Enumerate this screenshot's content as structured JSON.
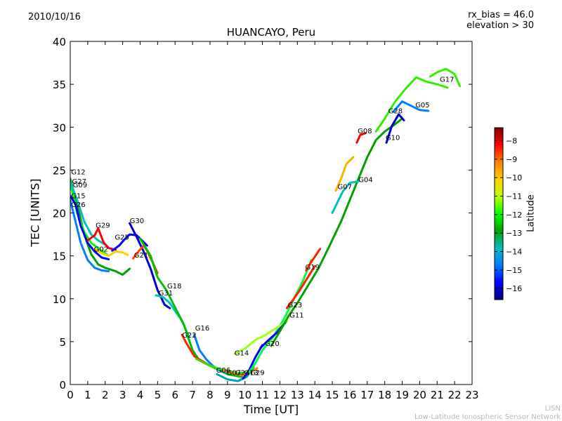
{
  "chart_data": {
    "type": "line",
    "title": "HUANCAYO, Peru",
    "date": "2010/10/16",
    "info_lines": [
      "rx_bias = 46.0",
      "elevation > 30"
    ],
    "xlabel": "Time [UT]",
    "ylabel": "TEC [UNITS]",
    "xlim": [
      0,
      23
    ],
    "ylim": [
      0,
      40
    ],
    "xticks": [
      "0",
      "1",
      "2",
      "3",
      "4",
      "5",
      "6",
      "7",
      "8",
      "9",
      "10",
      "11",
      "12",
      "13",
      "14",
      "15",
      "16",
      "17",
      "18",
      "19",
      "20",
      "21",
      "22",
      "23"
    ],
    "yticks": [
      "0",
      "5",
      "10",
      "15",
      "20",
      "25",
      "30",
      "35",
      "40"
    ],
    "grid": false,
    "colorbar": {
      "label": "Latitude",
      "range": [
        -16.6,
        -7.3
      ],
      "ticks": [
        "−8",
        "−9",
        "−10",
        "−11",
        "−12",
        "−13",
        "−14",
        "−15",
        "−16"
      ],
      "colormap": [
        "#00007f",
        "#0000ff",
        "#007fff",
        "#00bfbf",
        "#00a000",
        "#00ff00",
        "#bfff00",
        "#ffd000",
        "#ff7f00",
        "#ff0000",
        "#7f0000"
      ]
    },
    "series": [
      {
        "name": "G12",
        "color": "#00a000",
        "label_at": [
          0.05,
          24.5
        ],
        "points": [
          [
            0,
            24
          ],
          [
            0.4,
            21
          ],
          [
            0.8,
            17.5
          ],
          [
            1.2,
            15.2
          ],
          [
            1.6,
            14
          ],
          [
            2,
            13.6
          ],
          [
            2.6,
            13.2
          ],
          [
            3,
            12.8
          ],
          [
            3.4,
            13.5
          ]
        ]
      },
      {
        "name": "G27",
        "color": "#00ff00",
        "label_at": [
          0.1,
          23.4
        ],
        "points": [
          [
            0,
            23.5
          ],
          [
            0.4,
            20
          ],
          [
            0.8,
            17.8
          ],
          [
            1.2,
            16.5
          ],
          [
            1.8,
            15.6
          ],
          [
            2.2,
            15
          ]
        ]
      },
      {
        "name": "G09",
        "color": "#00bfbf",
        "label_at": [
          0.15,
          23.0
        ],
        "points": [
          [
            0,
            23.6
          ],
          [
            0.4,
            21.5
          ],
          [
            0.8,
            19
          ],
          [
            1.2,
            17.5
          ],
          [
            1.6,
            16.8
          ],
          [
            2,
            16.3
          ]
        ]
      },
      {
        "name": "G15",
        "color": "#0000ff",
        "label_at": [
          0.05,
          21.7
        ],
        "points": [
          [
            0,
            22
          ],
          [
            0.3,
            21
          ],
          [
            0.6,
            18.5
          ],
          [
            1,
            16.5
          ],
          [
            1.4,
            15.5
          ],
          [
            1.8,
            14.8
          ],
          [
            2.2,
            14.6
          ]
        ]
      },
      {
        "name": "G26",
        "color": "#007fff",
        "label_at": [
          0.05,
          20.7
        ],
        "points": [
          [
            0,
            21.5
          ],
          [
            0.3,
            19
          ],
          [
            0.6,
            16.5
          ],
          [
            1,
            14.5
          ],
          [
            1.4,
            13.6
          ],
          [
            1.8,
            13.3
          ],
          [
            2.2,
            13.2
          ]
        ]
      },
      {
        "name": "G29",
        "color": "#ff0000",
        "label_at": [
          1.45,
          18.3
        ],
        "points": [
          [
            1,
            16.8
          ],
          [
            1.4,
            17.4
          ],
          [
            1.6,
            18.2
          ],
          [
            1.9,
            16.6
          ],
          [
            2.2,
            15.9
          ],
          [
            2.6,
            15.7
          ]
        ]
      },
      {
        "name": "G02",
        "color": "#ffd000",
        "label_at": [
          1.35,
          15.5
        ],
        "points": [
          [
            1.4,
            15.8
          ],
          [
            1.8,
            15.3
          ],
          [
            2.2,
            15
          ],
          [
            2.6,
            15.5
          ],
          [
            3,
            15.4
          ],
          [
            3.3,
            15.1
          ]
        ]
      },
      {
        "name": "G25",
        "color": "#0000ff",
        "label_at": [
          2.55,
          16.9
        ],
        "points": [
          [
            2.4,
            15.6
          ],
          [
            2.8,
            16.2
          ],
          [
            3.1,
            16.9
          ],
          [
            3.4,
            17.5
          ],
          [
            3.8,
            17.4
          ],
          [
            4.1,
            16.8
          ],
          [
            4.4,
            16.2
          ]
        ]
      },
      {
        "name": "G30",
        "color": "#0000cc",
        "label_at": [
          3.4,
          18.8
        ],
        "points": [
          [
            3.4,
            18.8
          ],
          [
            3.8,
            17.2
          ],
          [
            4.2,
            15.5
          ],
          [
            4.6,
            13.5
          ],
          [
            5,
            11
          ],
          [
            5.4,
            9.3
          ],
          [
            5.7,
            8.9
          ]
        ]
      },
      {
        "name": "G21",
        "color": "#ff4400",
        "label_at": [
          3.65,
          14.8
        ],
        "points": [
          [
            3.6,
            14.7
          ],
          [
            3.9,
            15.5
          ],
          [
            4.2,
            16.2
          ],
          [
            4.4,
            15.6
          ],
          [
            4.7,
            14.3
          ],
          [
            5,
            13
          ]
        ]
      },
      {
        "name": "G31",
        "color": "#00bfbf",
        "label_at": [
          5.05,
          10.4
        ],
        "points": [
          [
            4.9,
            10.4
          ],
          [
            5.3,
            10.2
          ],
          [
            5.7,
            9.5
          ],
          [
            6,
            8.6
          ],
          [
            6.4,
            7.4
          ],
          [
            6.8,
            5.5
          ]
        ]
      },
      {
        "name": "G18",
        "color": "#00c000",
        "label_at": [
          5.55,
          11.2
        ],
        "points": [
          [
            4,
            17
          ],
          [
            4.6,
            15
          ],
          [
            5,
            12.5
          ],
          [
            5.5,
            11
          ],
          [
            6,
            9
          ],
          [
            6.5,
            7
          ],
          [
            7,
            4
          ],
          [
            7.4,
            2.8
          ],
          [
            8,
            2.2
          ],
          [
            9,
            1.2
          ],
          [
            10,
            0.8
          ]
        ]
      },
      {
        "name": "G22",
        "color": "#ff2200",
        "label_at": [
          6.4,
          5.5
        ],
        "points": [
          [
            6.4,
            5.8
          ],
          [
            6.6,
            5
          ],
          [
            6.8,
            4.3
          ],
          [
            7.1,
            3.3
          ],
          [
            7.5,
            2.8
          ],
          [
            8,
            2.2
          ]
        ]
      },
      {
        "name": "G16",
        "color": "#007fff",
        "label_at": [
          7.15,
          6.3
        ],
        "points": [
          [
            7.1,
            5.8
          ],
          [
            7.4,
            4
          ],
          [
            7.8,
            2.9
          ],
          [
            8.2,
            2.1
          ],
          [
            8.6,
            1.6
          ],
          [
            9,
            1.3
          ]
        ]
      },
      {
        "name": "G06",
        "color": "#33dd00",
        "label_at": [
          8.35,
          1.4
        ],
        "points": [
          [
            7.2,
            3
          ],
          [
            7.8,
            2.4
          ],
          [
            8.4,
            1.9
          ],
          [
            9,
            1.6
          ],
          [
            9.6,
            1.3
          ],
          [
            10,
            1.4
          ]
        ]
      },
      {
        "name": "G07",
        "color": "#ff8800",
        "label_at": [
          8.95,
          1.1
        ],
        "points": [
          [
            8.8,
            1.6
          ],
          [
            9.3,
            1.3
          ],
          [
            9.8,
            1.1
          ],
          [
            10.3,
            1.4
          ],
          [
            10.7,
            1.9
          ]
        ]
      },
      {
        "name": "G24",
        "color": "#00a0c0",
        "label_at": [
          9.45,
          1.1
        ],
        "points": [
          [
            8.4,
            1.2
          ],
          [
            9,
            0.6
          ],
          [
            9.6,
            0.4
          ],
          [
            10.1,
            0.9
          ],
          [
            10.5,
            2
          ]
        ]
      },
      {
        "name": "G13",
        "color": "#0000ff",
        "label_at": [
          9.95,
          1.1
        ],
        "points": [
          [
            9.9,
            0.7
          ],
          [
            10.2,
            1.5
          ],
          [
            10.6,
            3.2
          ],
          [
            11,
            4.6
          ]
        ]
      },
      {
        "name": "G29",
        "color": "#00ff40",
        "label_at": [
          10.3,
          1.1
        ],
        "points": [
          [
            10.2,
            1.3
          ],
          [
            10.6,
            2.5
          ],
          [
            11,
            4
          ],
          [
            11.6,
            5.5
          ],
          [
            12.2,
            7.5
          ],
          [
            12.8,
            10
          ],
          [
            13.3,
            12
          ],
          [
            13.8,
            14.5
          ]
        ]
      },
      {
        "name": "G14",
        "color": "#a0ff20",
        "label_at": [
          9.4,
          3.4
        ],
        "points": [
          [
            9.4,
            3.6
          ],
          [
            10,
            4.2
          ],
          [
            10.6,
            5.2
          ],
          [
            11.2,
            5.8
          ],
          [
            11.8,
            6.6
          ],
          [
            12.4,
            7.3
          ]
        ]
      },
      {
        "name": "G20",
        "color": "#0000ff",
        "label_at": [
          11.15,
          4.5
        ],
        "points": [
          [
            10.9,
            4.3
          ],
          [
            11.3,
            5.1
          ],
          [
            11.8,
            6
          ],
          [
            12.3,
            7.2
          ]
        ]
      },
      {
        "name": "G23",
        "color": "#ff2200",
        "label_at": [
          12.45,
          9.0
        ],
        "points": [
          [
            12.4,
            8.9
          ],
          [
            12.8,
            10
          ],
          [
            13.2,
            11.2
          ],
          [
            13.6,
            12.5
          ],
          [
            14,
            13.8
          ]
        ]
      },
      {
        "name": "G11",
        "color": "#00a000",
        "label_at": [
          12.55,
          7.8
        ],
        "points": [
          [
            11.5,
            4.5
          ],
          [
            12,
            6.2
          ],
          [
            12.5,
            8
          ],
          [
            13,
            9.5
          ],
          [
            13.6,
            11.5
          ],
          [
            14.2,
            13.5
          ],
          [
            14.8,
            16
          ],
          [
            15.5,
            19
          ],
          [
            16,
            21.5
          ],
          [
            16.5,
            24
          ],
          [
            17,
            26.5
          ],
          [
            17.5,
            28.5
          ],
          [
            18,
            29.5
          ],
          [
            18.5,
            30.2
          ],
          [
            19,
            31
          ]
        ]
      },
      {
        "name": "G19",
        "color": "#ff2200",
        "label_at": [
          13.45,
          13.4
        ],
        "points": [
          [
            13.5,
            13.3
          ],
          [
            13.8,
            14.3
          ],
          [
            14.1,
            15.2
          ],
          [
            14.3,
            15.8
          ]
        ]
      },
      {
        "name": "G07",
        "color": "#ffb000",
        "label_at": [
          15.3,
          22.8
        ],
        "points": [
          [
            15.2,
            22.6
          ],
          [
            15.5,
            24
          ],
          [
            15.8,
            25.7
          ],
          [
            16.2,
            26.5
          ]
        ]
      },
      {
        "name": "G04",
        "color": "#00bfbf",
        "label_at": [
          16.5,
          23.6
        ],
        "points": [
          [
            15,
            20
          ],
          [
            15.6,
            22.5
          ],
          [
            16,
            23.5
          ],
          [
            16.5,
            23.7
          ]
        ]
      },
      {
        "name": "G08",
        "color": "#ff0000",
        "label_at": [
          16.45,
          29.3
        ],
        "points": [
          [
            16.4,
            28.2
          ],
          [
            16.6,
            29.1
          ],
          [
            16.9,
            29.3
          ]
        ]
      },
      {
        "name": "G10",
        "color": "#0000cc",
        "label_at": [
          18.05,
          28.5
        ],
        "points": [
          [
            18.1,
            28.2
          ],
          [
            18.4,
            30.1
          ],
          [
            18.8,
            31.5
          ],
          [
            19.1,
            30.8
          ]
        ]
      },
      {
        "name": "G28",
        "color": "#33ee00",
        "label_at": [
          18.2,
          31.6
        ],
        "points": [
          [
            17.5,
            29.5
          ],
          [
            18,
            31
          ],
          [
            18.6,
            33
          ],
          [
            19.2,
            34.5
          ],
          [
            19.8,
            35.8
          ],
          [
            20.4,
            35.3
          ],
          [
            21,
            35
          ],
          [
            21.6,
            34.6
          ]
        ]
      },
      {
        "name": "G05",
        "color": "#007fff",
        "label_at": [
          19.75,
          32.3
        ],
        "points": [
          [
            18.5,
            31.8
          ],
          [
            19,
            33
          ],
          [
            19.5,
            32.5
          ],
          [
            20,
            32
          ],
          [
            20.5,
            31.9
          ]
        ]
      },
      {
        "name": "G17",
        "color": "#33ee00",
        "label_at": [
          21.15,
          35.3
        ],
        "points": [
          [
            20.6,
            35.9
          ],
          [
            21,
            36.4
          ],
          [
            21.5,
            36.8
          ],
          [
            22,
            36.2
          ],
          [
            22.3,
            34.8
          ]
        ]
      }
    ]
  },
  "footer": {
    "short": "LISN",
    "long": "Low-Latitude Ionospheric Sensor Network"
  }
}
